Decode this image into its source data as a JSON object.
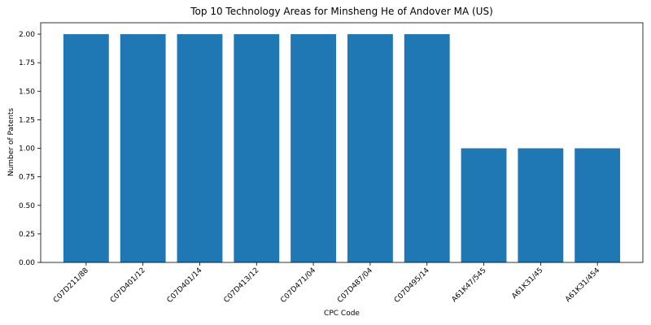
{
  "chart_data": {
    "type": "bar",
    "title": "Top 10 Technology Areas for Minsheng He of Andover MA (US)",
    "xlabel": "CPC Code",
    "ylabel": "Number of Patents",
    "categories": [
      "C07D211/88",
      "C07D401/12",
      "C07D401/14",
      "C07D413/12",
      "C07D471/04",
      "C07D487/04",
      "C07D495/14",
      "A61K47/545",
      "A61K31/45",
      "A61K31/454"
    ],
    "values": [
      2,
      2,
      2,
      2,
      2,
      2,
      2,
      1,
      1,
      1
    ],
    "ylim": [
      0,
      2.1
    ],
    "yticks": [
      "0.00",
      "0.25",
      "0.50",
      "0.75",
      "1.00",
      "1.25",
      "1.50",
      "1.75",
      "2.00"
    ],
    "grid": false,
    "legend": "none",
    "bar_color": "#1f77b4"
  }
}
